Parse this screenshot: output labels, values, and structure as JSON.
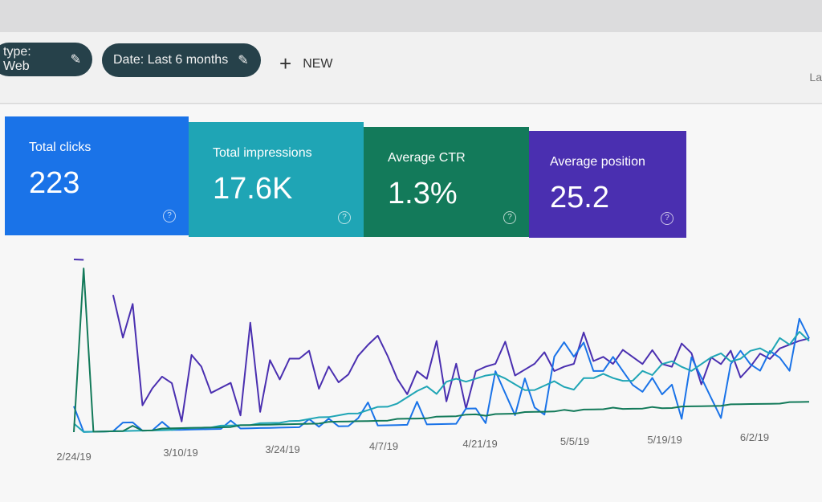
{
  "filters": {
    "chips": [
      {
        "label": "type: Web",
        "icon": "pencil-icon"
      },
      {
        "label": "Date: Last 6 months",
        "icon": "pencil-icon"
      }
    ],
    "new_label": "NEW",
    "right_cutoff": "La"
  },
  "metrics": [
    {
      "label": "Total clicks",
      "value": "223",
      "color": "#1a73e8"
    },
    {
      "label": "Total impressions",
      "value": "17.6K",
      "color": "#1fa5b5"
    },
    {
      "label": "Average CTR",
      "value": "1.3%",
      "color": "#137a5a"
    },
    {
      "label": "Average position",
      "value": "25.2",
      "color": "#4a2fb0"
    }
  ],
  "chart_data": {
    "type": "line",
    "x_tick_labels": [
      "2/24/19",
      "3/10/19",
      "3/24/19",
      "4/7/19",
      "4/21/19",
      "5/5/19",
      "5/19/19",
      "6/2/19"
    ],
    "grid": false,
    "legend": "none",
    "series": [
      {
        "color": "#4a2fb0",
        "values": [
          100,
          100,
          null,
          null,
          80,
          55,
          75,
          15,
          25,
          32,
          28,
          5,
          45,
          38,
          22,
          25,
          28,
          8,
          65,
          10,
          42,
          30,
          43,
          43,
          48,
          24,
          38,
          28,
          33,
          45,
          52,
          58,
          45,
          30,
          20,
          35,
          30,
          55,
          15,
          40,
          10,
          35,
          38,
          40,
          55,
          32,
          36,
          40,
          48,
          35,
          38,
          40,
          62,
          42,
          45,
          40,
          50,
          45,
          40,
          50,
          40,
          38,
          55,
          48,
          25,
          45,
          40,
          50,
          30,
          38,
          48,
          44,
          52,
          55,
          58,
          60
        ]
      },
      {
        "color": "#1a73e8",
        "values": [
          15,
          0,
          0,
          0,
          0,
          5,
          5,
          0,
          0,
          5,
          0,
          0,
          0,
          0,
          0,
          0,
          5,
          0,
          0,
          0,
          0,
          0,
          0,
          0,
          5,
          0,
          5,
          0,
          0,
          5,
          15,
          0,
          0,
          0,
          0,
          15,
          0,
          0,
          0,
          0,
          10,
          10,
          0,
          35,
          20,
          5,
          30,
          10,
          5,
          45,
          55,
          45,
          55,
          35,
          35,
          45,
          35,
          25,
          20,
          30,
          18,
          25,
          0,
          45,
          30,
          15,
          0,
          40,
          50,
          40,
          35,
          50,
          45,
          35,
          75,
          60
        ]
      },
      {
        "color": "#1fa5b5",
        "values": [
          5,
          0,
          0,
          0,
          0,
          0,
          0,
          0,
          0,
          0,
          0,
          1,
          1,
          1,
          1,
          2,
          2,
          2,
          2,
          3,
          3,
          3,
          4,
          4,
          5,
          6,
          6,
          7,
          8,
          8,
          10,
          12,
          12,
          14,
          18,
          22,
          25,
          20,
          28,
          30,
          28,
          30,
          32,
          33,
          30,
          26,
          22,
          22,
          25,
          28,
          24,
          22,
          30,
          30,
          33,
          30,
          28,
          28,
          35,
          32,
          40,
          42,
          38,
          35,
          40,
          45,
          48,
          42,
          44,
          50,
          52,
          48,
          60,
          55,
          65,
          58
        ]
      },
      {
        "color": "#137a5a",
        "values": [
          0,
          95,
          0,
          0,
          0,
          0,
          3,
          0,
          0,
          1,
          1,
          1,
          1,
          1,
          1,
          1,
          1,
          2,
          2,
          2,
          2,
          2,
          2,
          2,
          2,
          2,
          3,
          3,
          3,
          3,
          3,
          3,
          3,
          4,
          4,
          4,
          4,
          5,
          5,
          5,
          6,
          6,
          5,
          6,
          6,
          6,
          7,
          7,
          7,
          7,
          8,
          7,
          8,
          8,
          8,
          9,
          8,
          8,
          8,
          9,
          8,
          8,
          9,
          9,
          9,
          9,
          9,
          10,
          10,
          10,
          10,
          10,
          10,
          11,
          11,
          11
        ]
      }
    ]
  }
}
